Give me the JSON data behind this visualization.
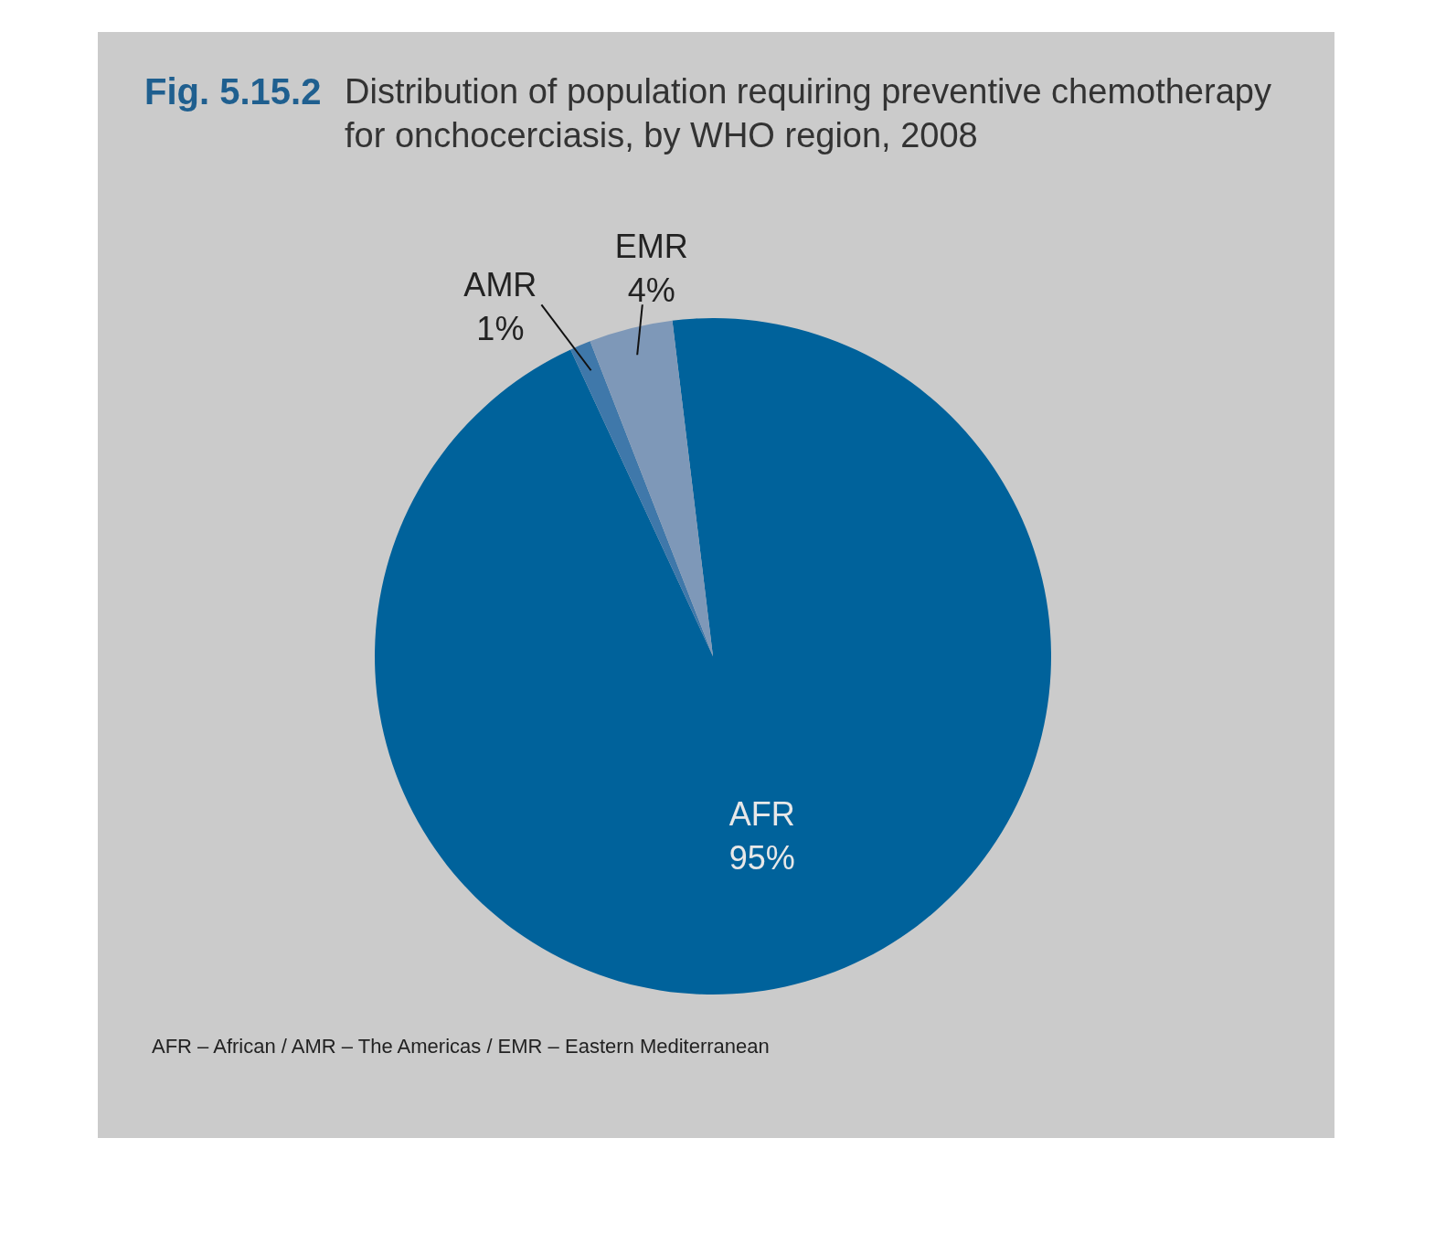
{
  "chart_data": {
    "type": "pie",
    "title": "Fig. 5.15.2",
    "subtitle": "Distribution of population requiring preventive chemotherapy\nfor onchocerciasis, by WHO region, 2008",
    "categories": [
      "AFR",
      "AMR",
      "EMR"
    ],
    "values": [
      95,
      1,
      4
    ],
    "value_labels": [
      "95%",
      "1%",
      "4%"
    ],
    "colors": [
      "#00629b",
      "#3f78aa",
      "#7e98b8"
    ],
    "annotations": [
      "AFR – African / AMR – The Americas / EMR – Eastern Mediterranean"
    ]
  }
}
